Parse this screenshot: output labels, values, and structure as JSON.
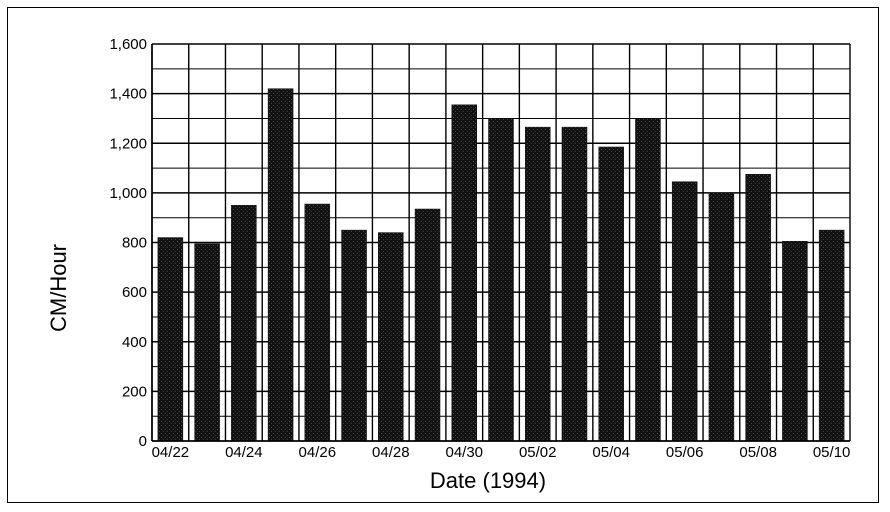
{
  "chart_data": {
    "type": "bar",
    "xlabel": "Date (1994)",
    "ylabel": "CM/Hour",
    "ylim": [
      0,
      1600
    ],
    "yticks": [
      0,
      200,
      400,
      600,
      800,
      1000,
      1200,
      1400,
      1600
    ],
    "ytick_labels": [
      "0",
      "200",
      "400",
      "600",
      "800",
      "1,000",
      "1,200",
      "1,400",
      "1,600"
    ],
    "grid": true,
    "categories": [
      "04/22",
      "04/23",
      "04/24",
      "04/25",
      "04/26",
      "04/27",
      "04/28",
      "04/29",
      "04/30",
      "05/01",
      "05/02",
      "05/03",
      "05/04",
      "05/05",
      "05/06",
      "05/07",
      "05/08",
      "05/09",
      "05/10"
    ],
    "xtick_labels": [
      "04/22",
      "04/24",
      "04/26",
      "04/28",
      "04/30",
      "05/02",
      "05/04",
      "05/06",
      "05/08",
      "05/10"
    ],
    "values": [
      820,
      795,
      950,
      1420,
      955,
      850,
      840,
      935,
      1355,
      1300,
      1265,
      1265,
      1185,
      1300,
      1045,
      1000,
      1075,
      805,
      850
    ],
    "bar_color": "#111111",
    "grid_color": "#000000"
  }
}
